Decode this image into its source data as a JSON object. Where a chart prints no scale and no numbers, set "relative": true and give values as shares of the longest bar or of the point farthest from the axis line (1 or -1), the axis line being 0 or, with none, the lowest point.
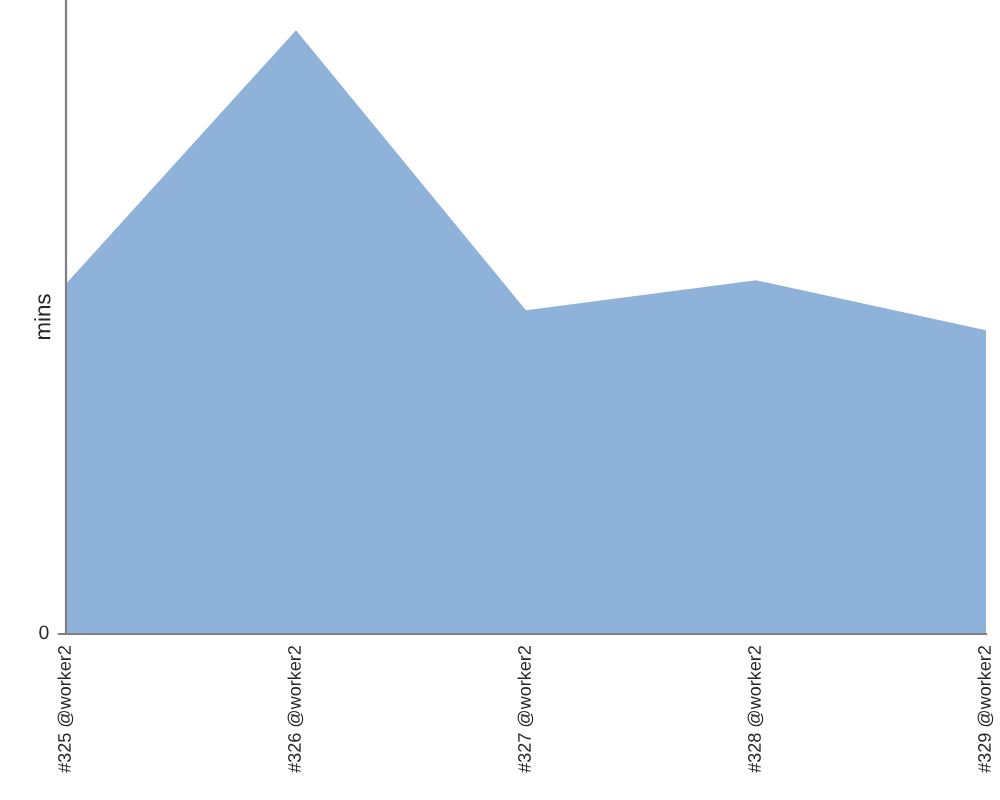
{
  "chart_data": {
    "type": "area",
    "relative": true,
    "ylabel": "mins",
    "categories": [
      "#325 @worker2",
      "#326 @worker2",
      "#327 @worker2",
      "#328 @worker2",
      "#329 @worker2"
    ],
    "series": [
      {
        "color": "#8fb2db",
        "values": [
          0.58,
          1,
          0.536,
          0.586,
          0.503
        ]
      }
    ],
    "annotations": [
      "0"
    ],
    "grid": false,
    "legend": false
  }
}
